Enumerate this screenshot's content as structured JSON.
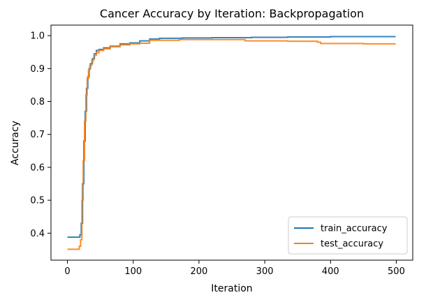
{
  "chart_data": {
    "type": "line",
    "title": "Cancer Accuracy by Iteration: Backpropagation",
    "xlabel": "Iteration",
    "ylabel": "Accuracy",
    "xlim": [
      -25,
      525
    ],
    "ylim": [
      0.318,
      1.032
    ],
    "xticks": [
      0,
      100,
      200,
      300,
      400,
      500
    ],
    "xtick_labels": [
      "0",
      "100",
      "200",
      "300",
      "400",
      "500"
    ],
    "yticks": [
      0.4,
      0.5,
      0.6,
      0.7,
      0.8,
      0.9,
      1.0
    ],
    "ytick_labels": [
      "0.4",
      "0.5",
      "0.6",
      "0.7",
      "0.8",
      "0.9",
      "1.0"
    ],
    "grid": false,
    "legend_position": "lower-right",
    "series": [
      {
        "name": "train_accuracy",
        "color": "#1f77b4",
        "x": [
          0,
          16,
          19,
          21,
          23,
          25,
          27,
          29,
          31,
          33,
          35,
          38,
          41,
          44,
          48,
          55,
          65,
          80,
          95,
          110,
          125,
          140,
          175,
          220,
          280,
          335,
          400,
          450,
          499
        ],
        "y": [
          0.388,
          0.388,
          0.395,
          0.43,
          0.55,
          0.68,
          0.77,
          0.84,
          0.875,
          0.9,
          0.915,
          0.93,
          0.945,
          0.955,
          0.958,
          0.963,
          0.968,
          0.975,
          0.978,
          0.984,
          0.99,
          0.992,
          0.993,
          0.994,
          0.995,
          0.996,
          0.997,
          0.997,
          0.997
        ]
      },
      {
        "name": "test_accuracy",
        "color": "#ff7f0e",
        "x": [
          0,
          15,
          18,
          20,
          22,
          24,
          26,
          28,
          30,
          32,
          34,
          37,
          40,
          44,
          48,
          55,
          65,
          80,
          95,
          110,
          125,
          170,
          265,
          270,
          335,
          380,
          385,
          450,
          499
        ],
        "y": [
          0.351,
          0.351,
          0.36,
          0.38,
          0.5,
          0.62,
          0.74,
          0.82,
          0.87,
          0.895,
          0.91,
          0.925,
          0.94,
          0.948,
          0.955,
          0.96,
          0.966,
          0.972,
          0.975,
          0.977,
          0.986,
          0.988,
          0.988,
          0.984,
          0.983,
          0.98,
          0.976,
          0.975,
          0.975
        ]
      }
    ]
  }
}
